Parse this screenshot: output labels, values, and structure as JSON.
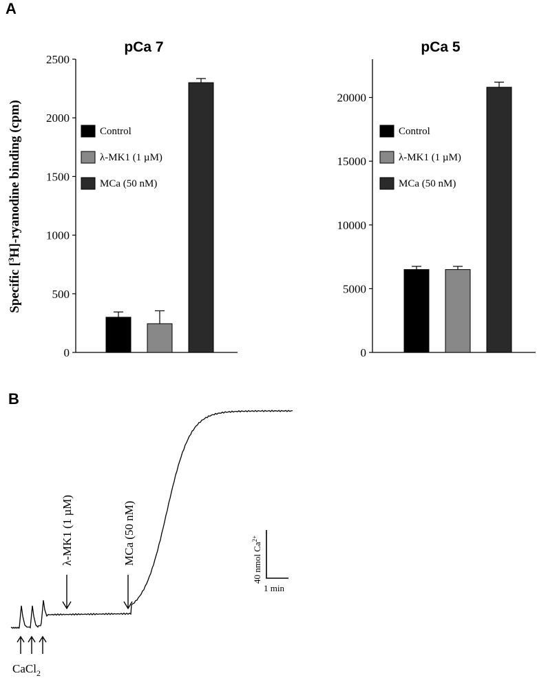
{
  "panel_a_letter": "A",
  "panel_b_letter": "B",
  "chart_data": [
    {
      "type": "bar",
      "title": "pCa 7",
      "ylabel_pre": "Specific [",
      "ylabel_sup": "3",
      "ylabel_post": "H]-ryanodine binding (cpm)",
      "categories": [
        "Control",
        "λ-MK1 (1 µM)",
        "MCa (50 nM)"
      ],
      "values": [
        300,
        245,
        2300
      ],
      "errors": [
        45,
        110,
        35
      ],
      "colors": [
        "#000000",
        "#888888",
        "#2a2a2a"
      ],
      "ylim": [
        0,
        2500
      ],
      "yticks": [
        0,
        500,
        1000,
        1500,
        2000,
        2500
      ],
      "legend_position": "left"
    },
    {
      "type": "bar",
      "title": "pCa 5",
      "categories": [
        "Control",
        "λ-MK1 (1 µM)",
        "MCa (50 nM)"
      ],
      "values": [
        6500,
        6500,
        20800
      ],
      "errors": [
        250,
        250,
        400
      ],
      "colors": [
        "#000000",
        "#888888",
        "#2a2a2a"
      ],
      "ylim": [
        0,
        23000
      ],
      "yticks": [
        0,
        5000,
        10000,
        15000,
        20000
      ],
      "legend_position": "left"
    },
    {
      "type": "line",
      "annotations": {
        "cacl2_main": "CaCl",
        "cacl2_sub": "2",
        "mk1": "λ-MK1 (1 µM)",
        "mca": "MCa (50 nM)"
      },
      "scale_bar": {
        "vertical_main": "40 nmol Ca",
        "vertical_sup": "2+",
        "horizontal": "1 min"
      }
    }
  ]
}
